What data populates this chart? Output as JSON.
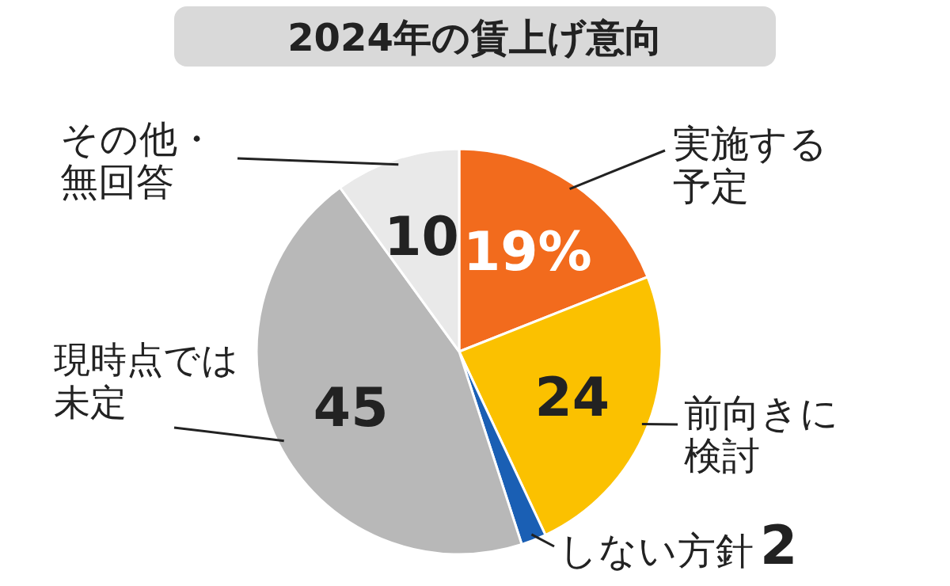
{
  "chart_data": {
    "type": "pie",
    "title": "2024年の賃上げ意向",
    "categories": [
      "実施する予定",
      "前向きに検討",
      "しない方針",
      "現時点では未定",
      "その他・無回答"
    ],
    "values": [
      19,
      24,
      2,
      45,
      10
    ],
    "colors": [
      "#f26b1d",
      "#fbc100",
      "#1a5fb4",
      "#b8b8b8",
      "#e9e9e9"
    ],
    "value_labels": [
      "19%",
      "24",
      "2",
      "45",
      "10"
    ]
  }
}
